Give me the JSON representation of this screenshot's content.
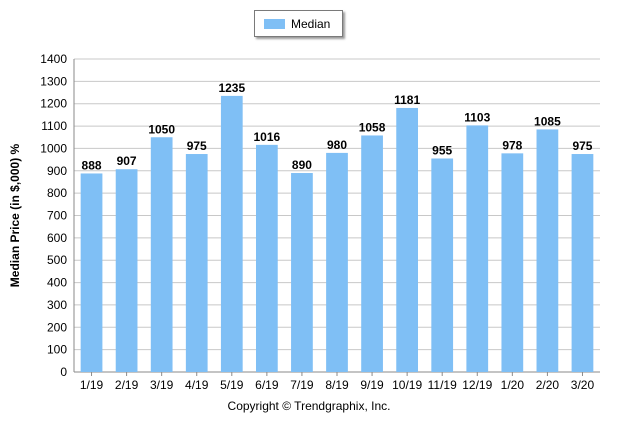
{
  "chart_data": {
    "type": "bar",
    "categories": [
      "1/19",
      "2/19",
      "3/19",
      "4/19",
      "5/19",
      "6/19",
      "7/19",
      "8/19",
      "9/19",
      "10/19",
      "11/19",
      "12/19",
      "1/20",
      "2/20",
      "3/20"
    ],
    "series": [
      {
        "name": "Median",
        "values": [
          888,
          907,
          1050,
          975,
          1235,
          1016,
          890,
          980,
          1058,
          1181,
          955,
          1103,
          978,
          1085,
          975
        ]
      }
    ],
    "xlabel": "",
    "ylabel": "Median Price (in $,000) %",
    "ylim": [
      0,
      1400
    ],
    "yticks": [
      0,
      100,
      200,
      300,
      400,
      500,
      600,
      700,
      800,
      900,
      1000,
      1100,
      1200,
      1300,
      1400
    ],
    "grid": true,
    "legend_position": "top-center",
    "data_labels": true,
    "bar_color": "#7fbff5",
    "grid_color": "#c8c8c8"
  },
  "legend": {
    "label": "Median"
  },
  "footer": {
    "copyright": "Copyright © Trendgraphix, Inc."
  }
}
